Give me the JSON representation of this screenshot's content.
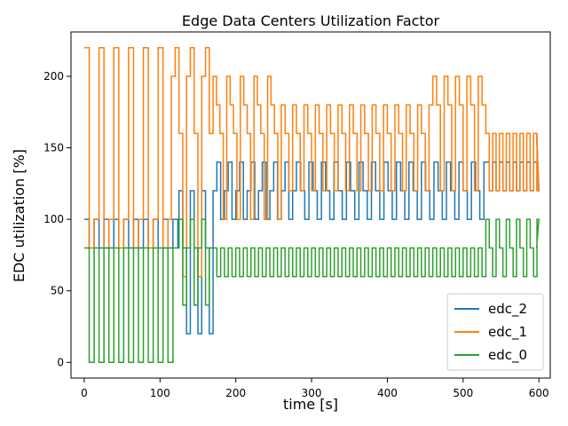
{
  "chart_data": {
    "type": "line",
    "title": "Edge Data Centers Utilization Factor",
    "xlabel": "time [s]",
    "ylabel": "EDC utilization [%]",
    "xlim": [
      -17.5,
      615
    ],
    "ylim": [
      -11,
      231
    ],
    "x_ticks": [
      0,
      100,
      200,
      300,
      400,
      500,
      600
    ],
    "x_tick_labels": [
      "0",
      "100",
      "200",
      "300",
      "400",
      "500",
      "600"
    ],
    "y_ticks": [
      0,
      50,
      100,
      150,
      200
    ],
    "y_tick_labels": [
      "0",
      "50",
      "100",
      "150",
      "200"
    ],
    "grid": false,
    "legend_position": "lower right",
    "legend": [
      "edc_2",
      "edc_1",
      "edc_0"
    ],
    "series": [
      {
        "name": "edc_2",
        "color": "#1f77b4",
        "segments": [
          {
            "t0": 0,
            "t1": 125,
            "levels": [
              100,
              80
            ],
            "period": 6.5
          },
          {
            "t0": 125,
            "t1": 170,
            "levels": [
              120,
              80,
              20
            ],
            "period": 5
          },
          {
            "t0": 170,
            "t1": 280,
            "levels": [
              120,
              140,
              100
            ],
            "period": 5
          },
          {
            "t0": 280,
            "t1": 530,
            "levels": [
              140,
              120,
              100
            ],
            "period": 5.5
          },
          {
            "t0": 530,
            "t1": 600,
            "levels": [
              140,
              120
            ],
            "period": 4.5
          }
        ],
        "end": [
          597,
          160
        ]
      },
      {
        "name": "edc_1",
        "color": "#ff7f0e",
        "segments": [
          {
            "t0": 0,
            "t1": 115,
            "levels": [
              220,
              80,
              100
            ],
            "period": 6.5
          },
          {
            "t0": 115,
            "t1": 170,
            "levels": [
              200,
              220,
              160,
              60
            ],
            "period": 5
          },
          {
            "t0": 170,
            "t1": 260,
            "levels": [
              200,
              180,
              160,
              100
            ],
            "period": 4.5
          },
          {
            "t0": 260,
            "t1": 460,
            "levels": [
              180,
              160,
              120
            ],
            "period": 5
          },
          {
            "t0": 460,
            "t1": 530,
            "levels": [
              200,
              180,
              120
            ],
            "period": 5
          },
          {
            "t0": 530,
            "t1": 600,
            "levels": [
              160,
              120
            ],
            "period": 4.5
          }
        ],
        "end": [
          597,
          160
        ]
      },
      {
        "name": "edc_0",
        "color": "#2ca02c",
        "segments": [
          {
            "t0": 0,
            "t1": 120,
            "levels": [
              80,
              0
            ],
            "period": 6.5
          },
          {
            "t0": 120,
            "t1": 170,
            "levels": [
              80,
              100,
              40
            ],
            "period": 5
          },
          {
            "t0": 170,
            "t1": 530,
            "levels": [
              80,
              60
            ],
            "period": 5
          },
          {
            "t0": 530,
            "t1": 600,
            "levels": [
              100,
              80,
              60
            ],
            "period": 4.5
          }
        ],
        "end": [
          597,
          80
        ]
      }
    ]
  }
}
